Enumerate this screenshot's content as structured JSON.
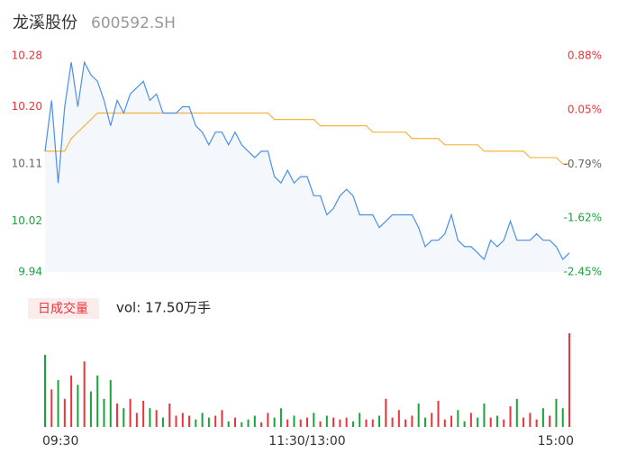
{
  "header": {
    "title": "龙溪股份",
    "code": "600592.SH"
  },
  "chart_data": [
    {
      "type": "line",
      "x": [
        0,
        3,
        6,
        9,
        12,
        15,
        18,
        21,
        24,
        27,
        30,
        33,
        36,
        39,
        42,
        45,
        48,
        51,
        54,
        57,
        60,
        63,
        66,
        69,
        72,
        75,
        78,
        81,
        84,
        87,
        90,
        93,
        96,
        99,
        102,
        105,
        108,
        111,
        114,
        117,
        120,
        123,
        126,
        129,
        132,
        135,
        138,
        141,
        144,
        147,
        150,
        153,
        156,
        159,
        162,
        165,
        168,
        171,
        174,
        177,
        180,
        183,
        186,
        189,
        192,
        195,
        198,
        201,
        204,
        207,
        210,
        213,
        216,
        219,
        222,
        225,
        228,
        231,
        234,
        237,
        240
      ],
      "xlim": [
        0,
        240
      ],
      "xticks": [
        {
          "value": 0,
          "label": "09:30"
        },
        {
          "value": 120,
          "label": "11:30/13:00"
        },
        {
          "value": 240,
          "label": "15:00"
        }
      ],
      "series": [
        {
          "color": "#4a8fe8",
          "values": [
            10.13,
            10.21,
            10.08,
            10.2,
            10.27,
            10.2,
            10.27,
            10.25,
            10.24,
            10.21,
            10.17,
            10.21,
            10.19,
            10.22,
            10.23,
            10.24,
            10.21,
            10.22,
            10.19,
            10.19,
            10.19,
            10.2,
            10.2,
            10.17,
            10.16,
            10.14,
            10.16,
            10.16,
            10.14,
            10.16,
            10.14,
            10.13,
            10.12,
            10.13,
            10.13,
            10.09,
            10.08,
            10.1,
            10.08,
            10.09,
            10.09,
            10.06,
            10.06,
            10.03,
            10.04,
            10.06,
            10.07,
            10.06,
            10.03,
            10.03,
            10.03,
            10.01,
            10.02,
            10.03,
            10.03,
            10.03,
            10.03,
            10.01,
            9.98,
            9.99,
            9.99,
            10.0,
            10.03,
            9.99,
            9.98,
            9.98,
            9.97,
            9.96,
            9.99,
            9.98,
            9.99,
            10.02,
            9.99,
            9.99,
            9.99,
            10.0,
            9.99,
            9.99,
            9.98,
            9.96,
            9.97
          ]
        },
        {
          "color": "#f5b342",
          "values": [
            10.13,
            10.13,
            10.13,
            10.13,
            10.15,
            10.16,
            10.17,
            10.18,
            10.19,
            10.19,
            10.19,
            10.19,
            10.19,
            10.19,
            10.19,
            10.19,
            10.19,
            10.19,
            10.19,
            10.19,
            10.19,
            10.19,
            10.19,
            10.19,
            10.19,
            10.19,
            10.19,
            10.19,
            10.19,
            10.19,
            10.19,
            10.19,
            10.19,
            10.19,
            10.19,
            10.18,
            10.18,
            10.18,
            10.18,
            10.18,
            10.18,
            10.18,
            10.17,
            10.17,
            10.17,
            10.17,
            10.17,
            10.17,
            10.17,
            10.17,
            10.16,
            10.16,
            10.16,
            10.16,
            10.16,
            10.16,
            10.15,
            10.15,
            10.15,
            10.15,
            10.15,
            10.14,
            10.14,
            10.14,
            10.14,
            10.14,
            10.14,
            10.13,
            10.13,
            10.13,
            10.13,
            10.13,
            10.13,
            10.13,
            10.12,
            10.12,
            10.12,
            10.12,
            10.12,
            10.11,
            10.11
          ]
        }
      ],
      "area_color": "#f4f7fc",
      "ylim": [
        9.94,
        10.28
      ],
      "yticks": [
        10.28,
        {
          "value": 10.2,
          "label": "10.20"
        },
        10.11,
        10.02,
        9.94
      ],
      "ytick_colors": [
        "#e8343a",
        "#e8343a",
        "#666666",
        "#1aa33b",
        "#1aa33b"
      ],
      "y2lim": [
        -2.45,
        0.88
      ],
      "y2ticks": [
        {
          "value": 0.88,
          "label": "0.88%"
        },
        {
          "value": 0.05,
          "label": "0.05%"
        },
        {
          "value": -0.79,
          "label": "-0.79%"
        },
        {
          "value": -1.62,
          "label": "-1.62%"
        },
        {
          "value": -2.45,
          "label": "-2.45%"
        }
      ]
    },
    {
      "type": "bar",
      "title": "日成交量",
      "subtitle": "vol: 17.50万手",
      "values": [
        77,
        40,
        50,
        30,
        55,
        45,
        70,
        38,
        55,
        30,
        50,
        25,
        20,
        30,
        15,
        28,
        20,
        18,
        10,
        25,
        12,
        15,
        12,
        8,
        15,
        10,
        12,
        18,
        6,
        10,
        5,
        8,
        12,
        5,
        15,
        10,
        20,
        8,
        12,
        8,
        10,
        15,
        6,
        12,
        10,
        8,
        10,
        6,
        15,
        8,
        8,
        12,
        30,
        10,
        18,
        8,
        12,
        25,
        10,
        15,
        28,
        8,
        12,
        18,
        6,
        15,
        10,
        25,
        10,
        12,
        8,
        22,
        30,
        10,
        15,
        8,
        20,
        12,
        30,
        20,
        100
      ],
      "ylim": [
        0,
        100
      ],
      "up_color": "#e8343a",
      "down_color": "#1aa33b"
    }
  ]
}
